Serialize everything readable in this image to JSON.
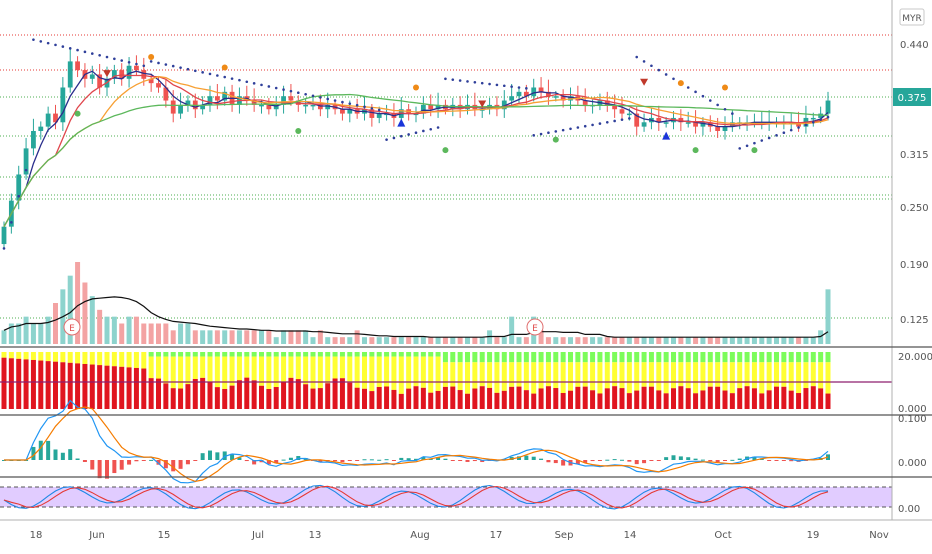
{
  "currency": "MYR",
  "price_axis": {
    "ticks": [
      "0.440",
      "0.375",
      "0.315",
      "0.250",
      "0.190",
      "0.125"
    ],
    "tick_values": [
      0.44,
      0.375,
      0.315,
      0.25,
      0.19,
      0.125
    ],
    "last_price": "0.375",
    "last_price_value": 0.375
  },
  "osc1_axis": {
    "ticks": [
      "20.000",
      "0.000"
    ],
    "tick_values": [
      20,
      0
    ]
  },
  "macd_axis": {
    "ticks": [
      "0.100",
      "0.000"
    ],
    "tick_values": [
      0.1,
      0
    ]
  },
  "rsi_axis": {
    "ticks": [
      "0.00"
    ],
    "tick_values": [
      0
    ]
  },
  "time_axis": {
    "labels": [
      "18",
      "Jun",
      "15",
      "Jul",
      "13",
      "Aug",
      "17",
      "Sep",
      "14",
      "Oct",
      "19",
      "Nov"
    ]
  },
  "earnings_markers": [
    "E",
    "E"
  ],
  "colors": {
    "up": "#26a69a",
    "down": "#ef5350",
    "ma_blue": "#2a2e8c",
    "ma_red": "#e0464c",
    "ma_orange": "#f7a033",
    "ma_green": "#5cb85c",
    "sar": "#2f3f9a",
    "ratio_red": "#e0151f",
    "ratio_yellow": "#ffff33",
    "ratio_green": "#7cfc5a",
    "macd_line": "#2196f3",
    "signal_line": "#f57c00",
    "rsi_band": "#e1ccff",
    "last_price_bg": "#26a69a",
    "upper_line": "#e53935",
    "support_line": "#4caf50"
  },
  "chart_data": [
    {
      "type": "candlestick",
      "panel": "price",
      "x": [
        "May 13",
        "May 14",
        "May 15",
        "May 18",
        "May 19",
        "May 20",
        "May 21",
        "May 22",
        "May 25",
        "May 26",
        "May 27",
        "May 28",
        "May 29",
        "Jun 1",
        "Jun 2",
        "Jun 3",
        "Jun 4",
        "Jun 5",
        "Jun 8",
        "Jun 9",
        "Jun 10",
        "Jun 11",
        "Jun 12",
        "Jun 15",
        "Jun 16",
        "Jun 17",
        "Jun 18",
        "Jun 19",
        "Jun 22",
        "Jun 23",
        "Jun 24",
        "Jun 25",
        "Jun 26",
        "Jun 29",
        "Jun 30",
        "Jul 1",
        "Jul 2",
        "Jul 3",
        "Jul 6",
        "Jul 7",
        "Jul 8",
        "Jul 9",
        "Jul 10",
        "Jul 13",
        "Jul 14",
        "Jul 15",
        "Jul 16",
        "Jul 17",
        "Jul 20",
        "Jul 21",
        "Jul 22",
        "Jul 23",
        "Jul 24",
        "Jul 27",
        "Jul 28",
        "Jul 29",
        "Jul 30",
        "Aug 3",
        "Aug 4",
        "Aug 5",
        "Aug 6",
        "Aug 7",
        "Aug 10",
        "Aug 11",
        "Aug 12",
        "Aug 13",
        "Aug 14",
        "Aug 17",
        "Aug 18",
        "Aug 19",
        "Aug 21",
        "Aug 24",
        "Aug 25",
        "Aug 26",
        "Aug 27",
        "Aug 28",
        "Aug 31",
        "Sep 1",
        "Sep 2",
        "Sep 3",
        "Sep 4",
        "Sep 7",
        "Sep 8",
        "Sep 9",
        "Sep 10",
        "Sep 11",
        "Sep 14",
        "Sep 15",
        "Sep 17",
        "Sep 18",
        "Sep 21",
        "Sep 22",
        "Sep 23",
        "Sep 24",
        "Sep 25",
        "Sep 28",
        "Sep 29",
        "Sep 30",
        "Oct 1",
        "Oct 2",
        "Oct 5",
        "Oct 6",
        "Oct 7",
        "Oct 8",
        "Oct 9",
        "Oct 12",
        "Oct 13",
        "Oct 14",
        "Oct 15",
        "Oct 16",
        "Oct 19",
        "Oct 20",
        "Oct 21"
      ],
      "close": [
        0.23,
        0.26,
        0.29,
        0.32,
        0.34,
        0.345,
        0.36,
        0.35,
        0.39,
        0.42,
        0.41,
        0.4,
        0.405,
        0.39,
        0.4,
        0.41,
        0.4,
        0.415,
        0.41,
        0.4,
        0.395,
        0.39,
        0.375,
        0.36,
        0.37,
        0.375,
        0.365,
        0.37,
        0.38,
        0.375,
        0.385,
        0.37,
        0.38,
        0.375,
        0.37,
        0.37,
        0.365,
        0.37,
        0.38,
        0.375,
        0.37,
        0.37,
        0.37,
        0.365,
        0.37,
        0.365,
        0.36,
        0.365,
        0.36,
        0.365,
        0.355,
        0.36,
        0.36,
        0.355,
        0.365,
        0.36,
        0.36,
        0.37,
        0.365,
        0.37,
        0.365,
        0.37,
        0.365,
        0.37,
        0.365,
        0.365,
        0.37,
        0.365,
        0.375,
        0.38,
        0.385,
        0.38,
        0.39,
        0.385,
        0.38,
        0.38,
        0.375,
        0.38,
        0.375,
        0.37,
        0.37,
        0.375,
        0.37,
        0.365,
        0.36,
        0.36,
        0.345,
        0.35,
        0.355,
        0.35,
        0.35,
        0.355,
        0.35,
        0.35,
        0.345,
        0.35,
        0.345,
        0.34,
        0.345,
        0.35,
        0.35,
        0.35,
        0.35,
        0.35,
        0.35,
        0.35,
        0.35,
        0.35,
        0.345,
        0.355,
        0.355,
        0.36,
        0.375
      ],
      "last_value": 0.375
    },
    {
      "type": "bar",
      "panel": "volume",
      "note": "relative volume, peaks near late May and Oct 21",
      "values": [
        2,
        3,
        3,
        4,
        3,
        3,
        4,
        6,
        8,
        10,
        12,
        9,
        7,
        5,
        4,
        4,
        3,
        4,
        4,
        3,
        3,
        3,
        3,
        2,
        3,
        3,
        2,
        2,
        2,
        2,
        2,
        2,
        2,
        2,
        2,
        2,
        2,
        1,
        2,
        2,
        2,
        2,
        1,
        2,
        1,
        1,
        1,
        1,
        2,
        1,
        1,
        1,
        1,
        1,
        1,
        1,
        1,
        1,
        1,
        1,
        1,
        1,
        1,
        1,
        1,
        1,
        2,
        1,
        1,
        4,
        1,
        1,
        4,
        2,
        1,
        1,
        1,
        1,
        1,
        1,
        1,
        1,
        1,
        1,
        1,
        1,
        1,
        1,
        1,
        1,
        1,
        1,
        1,
        1,
        1,
        1,
        1,
        1,
        1,
        1,
        1,
        1,
        1,
        1,
        1,
        1,
        1,
        1,
        1,
        1,
        1,
        2,
        8
      ]
    },
    {
      "type": "bar",
      "panel": "osc1",
      "ylim": [
        0,
        20
      ]
    },
    {
      "type": "line",
      "panel": "macd",
      "ylim": [
        -0.03,
        0.1
      ]
    },
    {
      "type": "line",
      "panel": "rsi"
    }
  ]
}
